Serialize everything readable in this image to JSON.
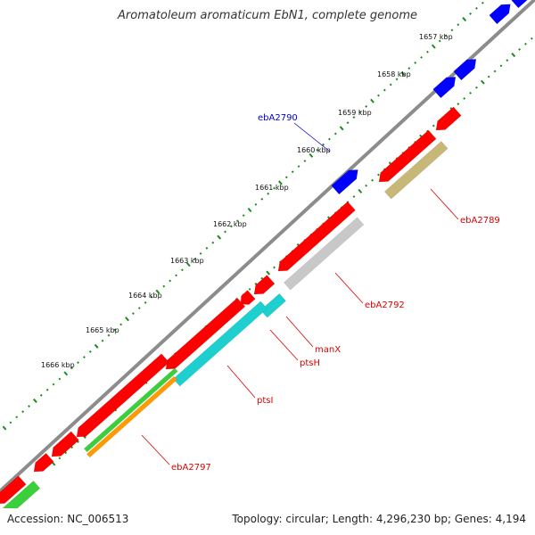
{
  "title": "Aromatoleum aromaticum EbN1, complete genome",
  "accession": "Accession: NC_006513",
  "summary": "Topology: circular; Length: 4,296,230 bp; Genes: 4,194",
  "colors": {
    "backbone": "#8c8c8c",
    "tick": "#1a8c1a",
    "forward_cds": "#0000ff",
    "reverse_cds": "#ff0000",
    "label_forward": "#0000cc",
    "label_reverse": "#dd0000",
    "cog_teal": "#1ecfcf",
    "cog_gray": "#c8c8c8",
    "cog_olive": "#c8b878",
    "cog_green": "#3ccf3c",
    "cog_orange": "#ff9a00"
  },
  "kbp_ticks": [
    "1657 kbp",
    "1658 kbp",
    "1659 kbp",
    "1660 kbp",
    "1661 kbp",
    "1662 kbp",
    "1663 kbp",
    "1664 kbp",
    "1665 kbp",
    "1666 kbp"
  ],
  "gene_labels": [
    {
      "text": "ebA2790",
      "strand": "forward"
    },
    {
      "text": "ebA2789",
      "strand": "reverse"
    },
    {
      "text": "ebA2792",
      "strand": "reverse"
    },
    {
      "text": "manX",
      "strand": "reverse"
    },
    {
      "text": "ptsH",
      "strand": "reverse"
    },
    {
      "text": "ptsI",
      "strand": "reverse"
    },
    {
      "text": "ebA2797",
      "strand": "reverse"
    }
  ]
}
